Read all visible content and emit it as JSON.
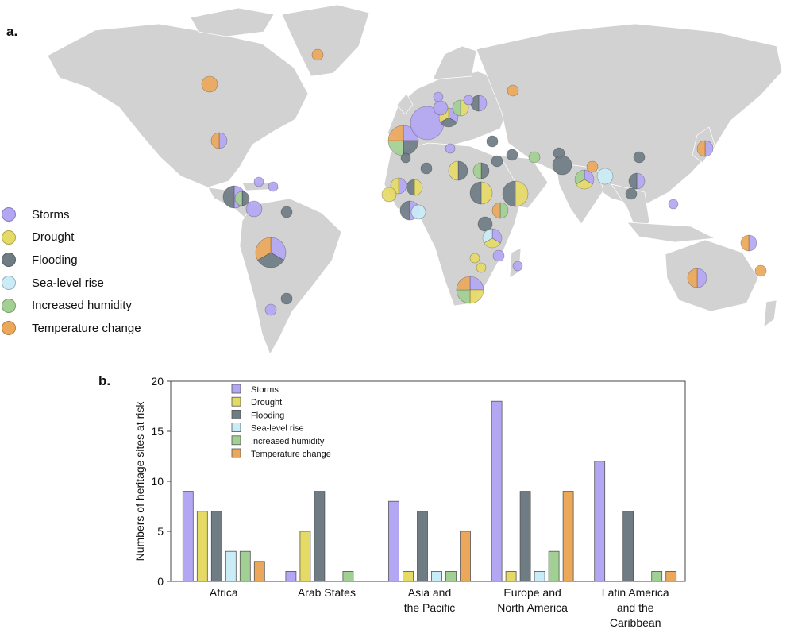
{
  "panel_a": {
    "label": "a.",
    "legend": [
      {
        "label": "Storms",
        "color": "#b3a6f2"
      },
      {
        "label": "Drought",
        "color": "#e6da66"
      },
      {
        "label": "Flooding",
        "color": "#6f7c84"
      },
      {
        "label": "Sea-level rise",
        "color": "#c9ecf6"
      },
      {
        "label": "Increased humidity",
        "color": "#a2cf93"
      },
      {
        "label": "Temperature change",
        "color": "#eba85a"
      }
    ]
  },
  "panel_b": {
    "label": "b."
  },
  "colors": {
    "storms": "#b3a6f2",
    "drought": "#e6da66",
    "flooding": "#6f7c84",
    "sea_level_rise": "#c9ecf6",
    "humidity": "#a2cf93",
    "temperature": "#eba85a",
    "land": "#d2d2d2"
  },
  "chart_data": {
    "type": "bar",
    "title": "",
    "xlabel": "",
    "ylabel": "Numbers of heritage sites at risk",
    "ylim": [
      0,
      20
    ],
    "yticks": [
      0,
      5,
      10,
      15,
      20
    ],
    "legend_position": "top-left",
    "categories": [
      "Africa",
      "Arab States",
      "Asia and the Pacific",
      "Europe and North America",
      "Latin America and the Caribbean"
    ],
    "category_lines": [
      [
        "Africa"
      ],
      [
        "Arab States"
      ],
      [
        "Asia and",
        "the Pacific"
      ],
      [
        "Europe and",
        "North America"
      ],
      [
        "Latin America",
        "and the",
        "Caribbean"
      ]
    ],
    "series": [
      {
        "name": "Storms",
        "color": "#b3a6f2",
        "values": [
          9,
          1,
          8,
          18,
          12
        ]
      },
      {
        "name": "Drought",
        "color": "#e6da66",
        "values": [
          7,
          5,
          1,
          1,
          0
        ]
      },
      {
        "name": "Flooding",
        "color": "#6f7c84",
        "values": [
          7,
          9,
          7,
          9,
          7
        ]
      },
      {
        "name": "Sea-level rise",
        "color": "#c9ecf6",
        "values": [
          3,
          0,
          1,
          1,
          0
        ]
      },
      {
        "name": "Increased humidity",
        "color": "#a2cf93",
        "values": [
          3,
          1,
          1,
          3,
          1
        ]
      },
      {
        "name": "Temperature change",
        "color": "#eba85a",
        "values": [
          2,
          0,
          5,
          9,
          1
        ]
      }
    ]
  }
}
